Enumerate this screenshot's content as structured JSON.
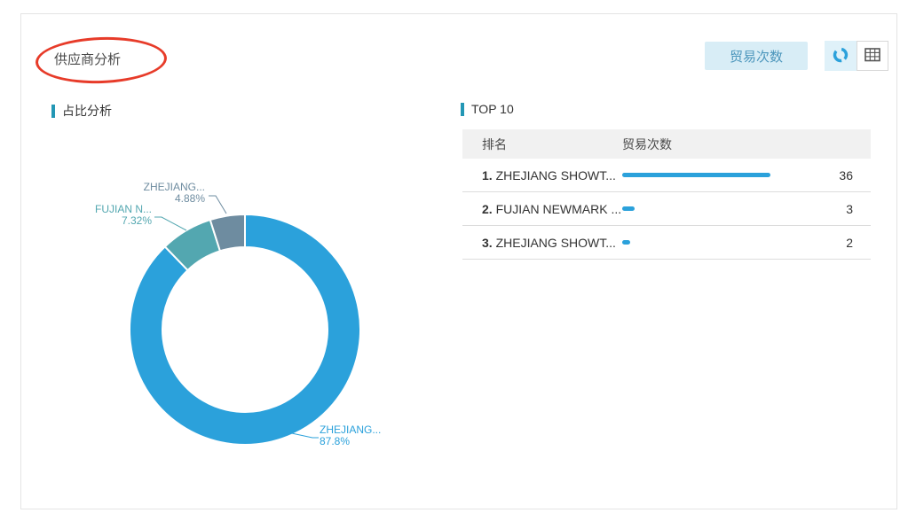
{
  "page": {
    "title": "供应商分析"
  },
  "annotation": {
    "shape": "red-ellipse-around-title"
  },
  "toolbar": {
    "metric_button_label": "贸易次数",
    "view_toggles": [
      {
        "icon": "donut-chart-icon",
        "selected": true
      },
      {
        "icon": "table-grid-icon",
        "selected": false
      }
    ]
  },
  "colors": {
    "primary_blue": "#2BA1DB",
    "slice_teal": "#53A7B0",
    "slice_gray_blue": "#6E8CA0",
    "accent_bar": "#2397B5",
    "annotation_red": "#E73B29",
    "button_bg": "#D8EDF6",
    "button_text": "#4C96BC",
    "table_header_bg": "#F1F1F1"
  },
  "left_panel": {
    "section_title": "占比分析"
  },
  "chart_data": {
    "type": "pie",
    "donut": true,
    "title": "占比分析",
    "start_angle": "12-o-clock",
    "direction": "clockwise",
    "series": [
      {
        "name": "ZHEJIANG...",
        "value": 87.8,
        "label": "87.8%",
        "color": "#2BA1DB"
      },
      {
        "name": "FUJIAN N...",
        "value": 7.32,
        "label": "7.32%",
        "color": "#53A7B0"
      },
      {
        "name": "ZHEJIANG...",
        "value": 4.88,
        "label": "4.88%",
        "color": "#6E8CA0"
      }
    ]
  },
  "right_panel": {
    "section_title": "TOP 10",
    "table": {
      "headers": [
        "排名",
        "贸易次数"
      ],
      "max_value": 36,
      "rows": [
        {
          "rank": "1.",
          "name": "ZHEJIANG SHOWT...",
          "value": 36
        },
        {
          "rank": "2.",
          "name": "FUJIAN NEWMARK ...",
          "value": 3
        },
        {
          "rank": "3.",
          "name": "ZHEJIANG SHOWT...",
          "value": 2
        }
      ]
    }
  }
}
